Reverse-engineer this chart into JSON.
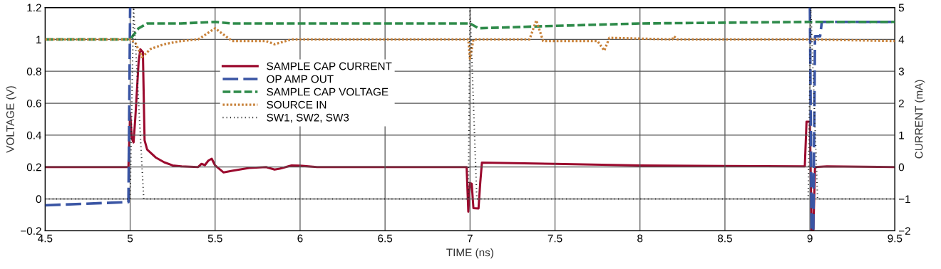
{
  "chart_data": {
    "type": "line",
    "xlabel": "TIME (ns)",
    "ylabel": "VOLTAGE (V)",
    "y2label": "CURRENT (mA)",
    "xlim": [
      4.5,
      9.5
    ],
    "xticks": [
      4.5,
      5,
      5.5,
      6,
      6.5,
      7,
      7.5,
      8,
      8.5,
      9,
      9.5
    ],
    "ylim": [
      -0.2,
      1.2
    ],
    "yticks": [
      {
        "value": -0.2,
        "label": "−0.2"
      },
      0,
      0.2,
      0.4,
      0.6,
      0.8,
      1,
      1.2
    ],
    "y2lim": [
      -2,
      5
    ],
    "y2ticks": [
      {
        "value": -2,
        "label": "−2"
      },
      {
        "value": -1,
        "label": "−1"
      },
      0,
      1,
      2,
      3,
      4,
      5
    ],
    "grid": true,
    "legend": "upper left",
    "series": [
      {
        "name": "SAMPLE CAP CURRENT",
        "color": "#9b0a2e",
        "axis": "y2",
        "line_style": "solid",
        "x": [
          4.5,
          4.99,
          5.0,
          5.01,
          5.02,
          5.03,
          5.05,
          5.06,
          5.075,
          5.085,
          5.1,
          5.15,
          5.2,
          5.25,
          5.3,
          5.4,
          5.42,
          5.44,
          5.46,
          5.48,
          5.5,
          5.55,
          5.6,
          5.7,
          5.8,
          5.85,
          5.88,
          5.95,
          6.0,
          6.1,
          6.5,
          6.98,
          6.99,
          7.0,
          7.01,
          7.02,
          7.05,
          7.06,
          7.07,
          7.5,
          8.0,
          8.5,
          8.97,
          8.98,
          9.0,
          9.01,
          9.02,
          9.03,
          9.1,
          9.5
        ],
        "values": [
          0,
          0,
          1.7,
          0.9,
          0.77,
          1.5,
          3.3,
          3.69,
          3.6,
          0.84,
          0.55,
          0.3,
          0.15,
          0.05,
          0.02,
          0,
          0.1,
          0.06,
          0.2,
          0.26,
          0.05,
          -0.17,
          -0.12,
          -0.03,
          0,
          -0.08,
          -0.05,
          0.05,
          0.04,
          0,
          0,
          0,
          -1.4,
          -0.5,
          -0.53,
          -1.29,
          -1.3,
          -0.5,
          0.14,
          0.1,
          0.05,
          0.03,
          0.02,
          1.42,
          1.42,
          -2,
          -2,
          0,
          0.02,
          0
        ]
      },
      {
        "name": "OP AMP OUT",
        "color": "#3a55a4",
        "line_style": "dashed",
        "x": [
          4.5,
          4.99,
          5.0,
          5.005,
          8.99,
          9.0,
          9.01,
          9.02,
          9.03,
          9.06,
          9.07,
          9.5
        ],
        "values": [
          -0.04,
          -0.02,
          1.2,
          null,
          null,
          1.2,
          -0.2,
          -0.2,
          1.02,
          1.02,
          1.11,
          1.11
        ]
      },
      {
        "name": "SAMPLE CAP VOLTAGE",
        "color": "#2e8b4a",
        "line_style": "dashed",
        "x": [
          4.5,
          5.0,
          5.05,
          5.1,
          5.3,
          5.5,
          5.6,
          6.0,
          7.0,
          7.05,
          7.5,
          8.0,
          8.5,
          9.0,
          9.05,
          9.5
        ],
        "values": [
          1.0,
          1.0,
          1.07,
          1.1,
          1.1,
          1.11,
          1.1,
          1.1,
          1.1,
          1.07,
          1.085,
          1.1,
          1.105,
          1.11,
          1.11,
          1.11
        ]
      },
      {
        "name": "SOURCE IN",
        "color": "#c8823a",
        "line_style": "dotted",
        "x": [
          4.5,
          5.0,
          5.03,
          5.07,
          5.12,
          5.2,
          5.3,
          5.4,
          5.5,
          5.6,
          5.8,
          5.85,
          5.95,
          6.5,
          6.99,
          7.0,
          7.02,
          7.35,
          7.39,
          7.43,
          7.75,
          7.79,
          7.82,
          8.19,
          8.2,
          8.22,
          9.0,
          9.5
        ],
        "values": [
          1.0,
          1.0,
          0.98,
          0.89,
          0.94,
          0.97,
          0.99,
          1.0,
          1.07,
          0.99,
          0.99,
          0.97,
          1.0,
          1.0,
          1.0,
          0.88,
          1.0,
          1.0,
          1.12,
          0.99,
          0.99,
          0.93,
          1.01,
          1.0,
          1.02,
          1.0,
          1.0,
          0.99
        ]
      },
      {
        "name": "SW1, SW2, SW3",
        "color": "#222222",
        "line_style": "dotted",
        "x": [
          4.5,
          5.0,
          5.02,
          5.08,
          6.99,
          7.0,
          7.04,
          8.99,
          9.005,
          9.045,
          9.5
        ],
        "values": [
          0,
          0,
          1.2,
          0,
          0,
          1.2,
          0,
          0,
          1.2,
          0,
          0
        ]
      }
    ]
  }
}
